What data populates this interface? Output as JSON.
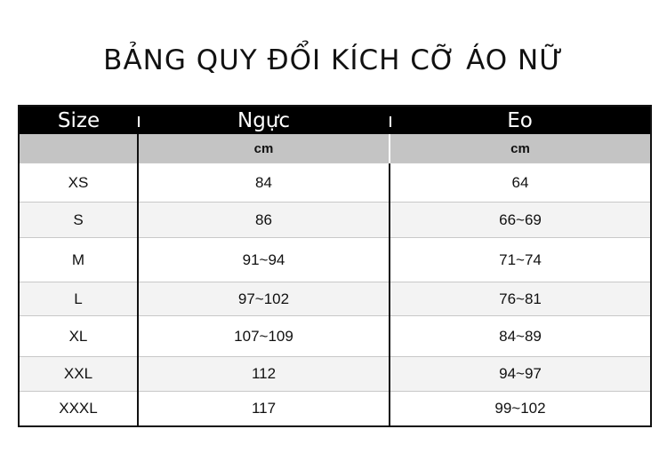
{
  "title": "BẢNG QUY ĐỔI KÍCH CỠ ÁO NỮ",
  "table": {
    "headers": [
      "Size",
      "Ngực",
      "Eo"
    ],
    "units": [
      "",
      "cm",
      "cm"
    ],
    "rows": [
      {
        "size": "XS",
        "chest": "84",
        "waist": "64"
      },
      {
        "size": "S",
        "chest": "86",
        "waist": "66~69"
      },
      {
        "size": "M",
        "chest": "91~94",
        "waist": "71~74"
      },
      {
        "size": "L",
        "chest": "97~102",
        "waist": "76~81"
      },
      {
        "size": "XL",
        "chest": "107~109",
        "waist": "84~89"
      },
      {
        "size": "XXL",
        "chest": "112",
        "waist": "94~97"
      },
      {
        "size": "XXXL",
        "chest": "117",
        "waist": "99~102"
      }
    ]
  }
}
